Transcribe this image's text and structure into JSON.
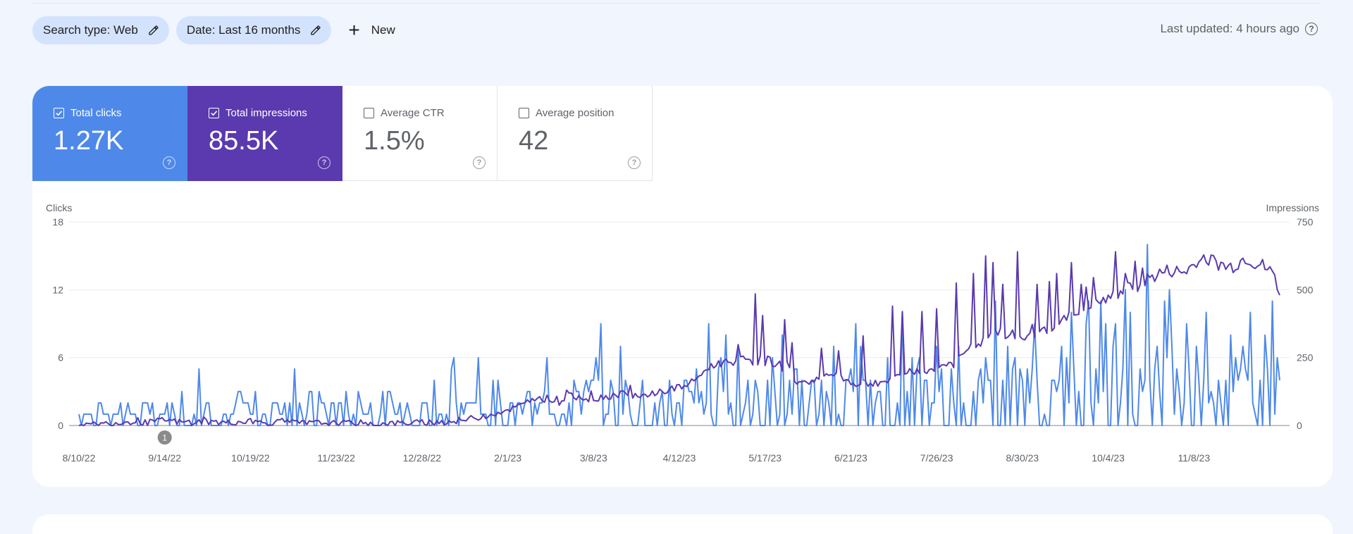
{
  "filters": {
    "search_type": "Search type: Web",
    "date": "Date: Last 16 months",
    "new_label": "New"
  },
  "last_updated": "Last updated: 4 hours ago",
  "metrics": [
    {
      "label": "Total clicks",
      "value": "1.27K",
      "checked": true
    },
    {
      "label": "Total impressions",
      "value": "85.5K",
      "checked": true
    },
    {
      "label": "Average CTR",
      "value": "1.5%",
      "checked": false
    },
    {
      "label": "Average position",
      "value": "42",
      "checked": false
    }
  ],
  "colors": {
    "clicks": "#4e89ea",
    "impressions": "#5a3aae",
    "chip": "#d3e3fd",
    "background": "#f1f5fd"
  },
  "icons": [
    "pencil-icon",
    "plus-icon",
    "help-icon",
    "checkbox-checked-icon",
    "checkbox-empty-icon"
  ],
  "chart_data": {
    "type": "line",
    "start_date": "2022-08-10",
    "days": 490,
    "left_axis": {
      "label": "Clicks",
      "ylim": [
        0,
        18
      ],
      "ticks": [
        "0",
        "6",
        "12",
        "18"
      ]
    },
    "right_axis": {
      "label": "Impressions",
      "ylim": [
        0,
        750
      ],
      "ticks": [
        "0",
        "250",
        "500",
        "750"
      ]
    },
    "x_tick_labels": [
      "8/10/22",
      "9/14/22",
      "10/19/22",
      "11/23/22",
      "12/28/22",
      "2/1/23",
      "3/8/23",
      "4/12/23",
      "5/17/23",
      "6/21/23",
      "7/26/23",
      "8/30/23",
      "10/4/23",
      "11/8/23"
    ],
    "annotation": {
      "label": "1",
      "date": "9/14/22"
    },
    "grid": true,
    "series": [
      {
        "name": "Total clicks",
        "axis": "left",
        "color": "#4e89ea",
        "keypoints": [
          [
            0,
            0
          ],
          [
            2,
            2
          ],
          [
            4,
            0
          ],
          [
            8,
            0
          ],
          [
            11,
            1
          ],
          [
            14,
            0
          ],
          [
            20,
            3
          ],
          [
            23,
            1
          ],
          [
            27,
            0
          ],
          [
            30,
            3
          ],
          [
            33,
            0
          ],
          [
            37,
            2
          ],
          [
            42,
            3
          ],
          [
            45,
            1
          ],
          [
            50,
            2
          ],
          [
            55,
            3
          ],
          [
            58,
            0
          ],
          [
            62,
            1
          ],
          [
            66,
            3
          ],
          [
            70,
            1
          ],
          [
            73,
            2
          ],
          [
            77,
            0
          ],
          [
            80,
            2
          ],
          [
            83,
            3
          ],
          [
            86,
            2
          ],
          [
            90,
            0
          ],
          [
            94,
            2
          ],
          [
            97,
            5
          ],
          [
            100,
            2
          ],
          [
            104,
            1
          ],
          [
            108,
            3
          ],
          [
            111,
            0
          ],
          [
            115,
            2
          ],
          [
            119,
            2
          ],
          [
            122,
            1
          ],
          [
            126,
            3
          ],
          [
            130,
            0
          ],
          [
            134,
            2
          ],
          [
            138,
            3
          ],
          [
            141,
            0
          ],
          [
            145,
            1
          ],
          [
            150,
            2
          ],
          [
            154,
            0
          ],
          [
            158,
            1
          ],
          [
            162,
            3
          ],
          [
            166,
            2
          ],
          [
            170,
            0
          ],
          [
            174,
            2
          ],
          [
            178,
            1
          ],
          [
            182,
            3
          ],
          [
            186,
            0
          ],
          [
            190,
            4
          ],
          [
            194,
            1
          ],
          [
            198,
            2
          ],
          [
            202,
            1
          ],
          [
            207,
            3
          ],
          [
            210,
            1
          ],
          [
            214,
            4
          ],
          [
            218,
            2
          ],
          [
            222,
            1
          ],
          [
            226,
            0
          ],
          [
            230,
            1
          ],
          [
            234,
            2
          ],
          [
            238,
            0
          ],
          [
            242,
            2
          ],
          [
            246,
            4
          ],
          [
            250,
            2
          ],
          [
            254,
            1
          ],
          [
            258,
            2
          ],
          [
            262,
            3
          ],
          [
            266,
            0
          ],
          [
            270,
            1
          ],
          [
            274,
            2
          ],
          [
            278,
            4
          ],
          [
            282,
            1
          ],
          [
            286,
            3
          ],
          [
            290,
            2
          ],
          [
            293,
            5
          ],
          [
            296,
            1
          ],
          [
            300,
            2
          ],
          [
            304,
            4
          ],
          [
            308,
            0
          ],
          [
            312,
            3
          ],
          [
            316,
            2
          ],
          [
            320,
            4
          ],
          [
            324,
            1
          ],
          [
            328,
            6
          ],
          [
            332,
            2
          ],
          [
            336,
            0
          ],
          [
            340,
            4
          ],
          [
            344,
            1
          ],
          [
            348,
            3
          ],
          [
            352,
            2
          ],
          [
            356,
            6
          ],
          [
            360,
            1
          ],
          [
            364,
            3
          ],
          [
            368,
            0
          ],
          [
            372,
            5
          ],
          [
            376,
            2
          ],
          [
            380,
            9
          ],
          [
            384,
            1
          ],
          [
            388,
            4
          ],
          [
            392,
            2
          ],
          [
            396,
            5
          ],
          [
            400,
            0
          ],
          [
            404,
            7
          ],
          [
            408,
            3
          ],
          [
            412,
            1
          ],
          [
            416,
            4
          ],
          [
            420,
            8
          ],
          [
            424,
            2
          ],
          [
            428,
            5
          ],
          [
            432,
            0
          ],
          [
            436,
            6
          ],
          [
            440,
            3
          ],
          [
            444,
            2
          ],
          [
            448,
            5
          ],
          [
            452,
            1
          ],
          [
            456,
            9
          ],
          [
            460,
            2
          ],
          [
            464,
            5
          ],
          [
            468,
            0
          ],
          [
            472,
            8
          ],
          [
            476,
            3
          ],
          [
            480,
            2
          ],
          [
            484,
            10
          ],
          [
            488,
            1
          ],
          [
            490,
            1
          ]
        ],
        "peaks": [
          [
            49,
            5
          ],
          [
            88,
            5
          ],
          [
            145,
            4
          ],
          [
            183,
            3
          ],
          [
            212,
            4
          ],
          [
            252,
            5
          ],
          [
            262,
            6
          ],
          [
            283,
            6
          ],
          [
            308,
            7
          ],
          [
            343,
            6
          ],
          [
            350,
            7
          ],
          [
            359,
            7
          ],
          [
            390,
            9
          ],
          [
            401,
            7
          ],
          [
            415,
            5
          ],
          [
            423,
            9
          ],
          [
            436,
            16
          ],
          [
            452,
            9
          ],
          [
            460,
            10
          ],
          [
            470,
            8
          ],
          [
            478,
            10
          ],
          [
            487,
            11
          ],
          [
            489,
            6
          ]
        ]
      },
      {
        "name": "Total impressions",
        "axis": "right",
        "color": "#5a3aae",
        "keypoints": [
          [
            0,
            0
          ],
          [
            10,
            5
          ],
          [
            20,
            10
          ],
          [
            28,
            15
          ],
          [
            36,
            10
          ],
          [
            46,
            20
          ],
          [
            55,
            12
          ],
          [
            66,
            15
          ],
          [
            80,
            10
          ],
          [
            90,
            15
          ],
          [
            100,
            10
          ],
          [
            110,
            15
          ],
          [
            120,
            8
          ],
          [
            130,
            10
          ],
          [
            140,
            8
          ],
          [
            150,
            10
          ],
          [
            160,
            6
          ],
          [
            170,
            8
          ],
          [
            180,
            10
          ],
          [
            190,
            12
          ],
          [
            200,
            15
          ],
          [
            206,
            20
          ],
          [
            214,
            30
          ],
          [
            220,
            40
          ],
          [
            228,
            55
          ],
          [
            236,
            70
          ],
          [
            244,
            90
          ],
          [
            250,
            100
          ],
          [
            256,
            95
          ],
          [
            262,
            105
          ],
          [
            268,
            110
          ],
          [
            276,
            95
          ],
          [
            284,
            110
          ],
          [
            292,
            120
          ],
          [
            300,
            100
          ],
          [
            308,
            120
          ],
          [
            316,
            130
          ],
          [
            324,
            145
          ],
          [
            330,
            160
          ],
          [
            334,
            195
          ],
          [
            340,
            220
          ],
          [
            346,
            235
          ],
          [
            352,
            240
          ],
          [
            358,
            245
          ],
          [
            364,
            235
          ],
          [
            370,
            240
          ],
          [
            376,
            220
          ],
          [
            380,
            210
          ],
          [
            384,
            170
          ],
          [
            388,
            150
          ],
          [
            394,
            170
          ],
          [
            402,
            185
          ],
          [
            408,
            180
          ],
          [
            414,
            160
          ],
          [
            420,
            150
          ],
          [
            428,
            160
          ],
          [
            436,
            165
          ],
          [
            440,
            175
          ],
          [
            444,
            200
          ],
          [
            450,
            205
          ],
          [
            456,
            195
          ],
          [
            460,
            215
          ],
          [
            466,
            225
          ],
          [
            470,
            230
          ],
          [
            474,
            260
          ],
          [
            478,
            280
          ],
          [
            482,
            300
          ],
          [
            486,
            310
          ],
          [
            490,
            330
          ],
          [
            496,
            340
          ],
          [
            502,
            330
          ],
          [
            508,
            320
          ],
          [
            514,
            340
          ],
          [
            520,
            360
          ],
          [
            526,
            380
          ],
          [
            532,
            400
          ],
          [
            538,
            420
          ],
          [
            544,
            440
          ],
          [
            550,
            460
          ],
          [
            556,
            480
          ],
          [
            562,
            500
          ],
          [
            568,
            520
          ],
          [
            574,
            540
          ],
          [
            580,
            560
          ],
          [
            586,
            570
          ],
          [
            592,
            560
          ],
          [
            598,
            590
          ],
          [
            604,
            610
          ],
          [
            610,
            600
          ],
          [
            616,
            580
          ],
          [
            620,
            590
          ],
          [
            626,
            620
          ],
          [
            630,
            600
          ],
          [
            634,
            590
          ],
          [
            640,
            560
          ],
          [
            644,
            540
          ]
        ],
        "peaks": [
          [
            363,
            485
          ],
          [
            367,
            405
          ],
          [
            379,
            390
          ],
          [
            383,
            305
          ],
          [
            398,
            285
          ],
          [
            408,
            275
          ],
          [
            420,
            330
          ],
          [
            436,
            440
          ],
          [
            442,
            420
          ],
          [
            452,
            420
          ],
          [
            460,
            430
          ],
          [
            470,
            525
          ],
          [
            480,
            560
          ],
          [
            486,
            625
          ],
          [
            490,
            600
          ],
          [
            496,
            520
          ],
          [
            504,
            640
          ],
          [
            514,
            520
          ],
          [
            520,
            530
          ],
          [
            524,
            560
          ],
          [
            532,
            600
          ],
          [
            538,
            520
          ],
          [
            540,
            510
          ],
          [
            544,
            545
          ],
          [
            552,
            480
          ],
          [
            556,
            640
          ],
          [
            561,
            560
          ],
          [
            566,
            605
          ],
          [
            570,
            580
          ]
        ]
      }
    ]
  }
}
